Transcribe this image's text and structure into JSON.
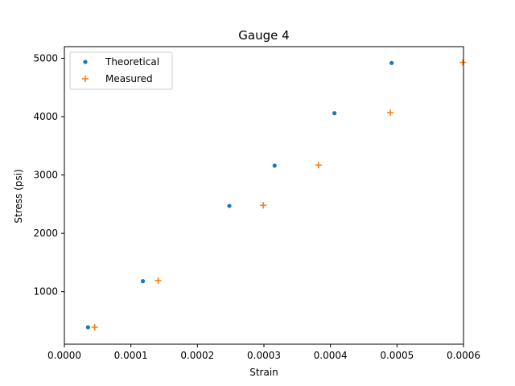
{
  "chart_data": {
    "type": "scatter",
    "title": "Gauge 4",
    "xlabel": "Strain",
    "ylabel": "Stress (psi)",
    "xlim": [
      0.0,
      0.0006
    ],
    "ylim": [
      100,
      5200
    ],
    "xticks": [
      "0.0000",
      "0.0001",
      "0.0002",
      "0.0003",
      "0.0004",
      "0.0005",
      "0.0006"
    ],
    "xtick_values": [
      0.0,
      0.0001,
      0.0002,
      0.0003,
      0.0004,
      0.0005,
      0.0006
    ],
    "yticks": [
      "1000",
      "2000",
      "3000",
      "4000",
      "5000"
    ],
    "ytick_values": [
      1000,
      2000,
      3000,
      4000,
      5000
    ],
    "grid": false,
    "legend_position": "top-left",
    "series": [
      {
        "name": "Theoretical",
        "marker": "dot",
        "color": "#1f77b4",
        "x": [
          3.55e-05,
          0.000118,
          0.000248,
          0.000316,
          0.000406,
          0.000492
        ],
        "y": [
          390,
          1180,
          2470,
          3160,
          4060,
          4920
        ]
      },
      {
        "name": "Measured",
        "marker": "plus",
        "color": "#ff7f0e",
        "x": [
          4.55e-05,
          0.000141,
          0.000299,
          0.000382,
          0.00049,
          0.000599
        ],
        "y": [
          390,
          1190,
          2480,
          3170,
          4070,
          4930
        ]
      }
    ]
  }
}
